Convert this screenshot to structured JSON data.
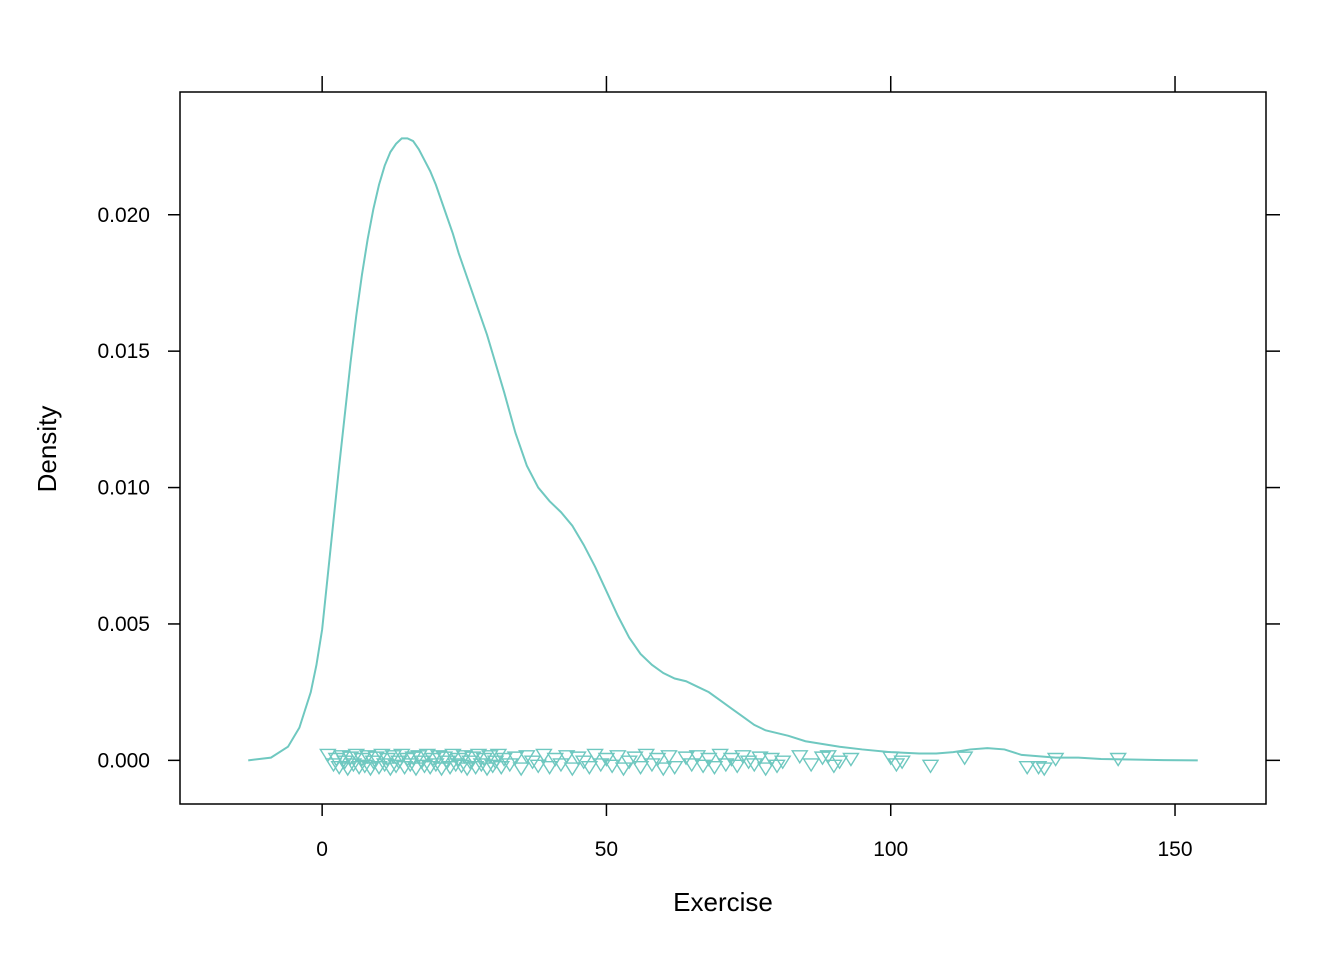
{
  "chart_data": {
    "type": "density",
    "xlabel": "Exercise",
    "ylabel": "Density",
    "xlim": [
      -25,
      166
    ],
    "ylim": [
      -0.0016,
      0.0245
    ],
    "x_ticks": [
      0,
      50,
      100,
      150
    ],
    "y_ticks": [
      0.0,
      0.005,
      0.01,
      0.015,
      0.02
    ],
    "x_tick_labels": [
      "0",
      "50",
      "100",
      "150"
    ],
    "y_tick_labels": [
      "0.000",
      "0.005",
      "0.010",
      "0.015",
      "0.020"
    ],
    "grid": false,
    "color": "#6FC8C0",
    "series": [
      {
        "x": [
          -13,
          -9,
          -6,
          -4,
          -2,
          -1,
          0,
          1,
          2,
          3,
          4,
          5,
          6,
          7,
          8,
          9,
          10,
          11,
          12,
          13,
          14,
          15,
          16,
          17,
          18,
          19,
          20,
          21,
          22,
          23,
          24,
          25,
          26,
          27,
          28,
          29,
          30,
          32,
          34,
          36,
          38,
          40,
          42,
          44,
          46,
          48,
          50,
          52,
          54,
          56,
          58,
          60,
          62,
          64,
          66,
          68,
          70,
          72,
          74,
          76,
          78,
          80,
          82,
          85,
          88,
          91,
          95,
          100,
          105,
          108,
          111,
          114,
          117,
          120,
          123,
          126,
          129,
          133,
          137,
          142,
          148,
          154
        ],
        "y": [
          0.0,
          0.0001,
          0.0005,
          0.0012,
          0.0025,
          0.0035,
          0.0048,
          0.0068,
          0.0088,
          0.0108,
          0.0127,
          0.0146,
          0.0163,
          0.0178,
          0.0191,
          0.0202,
          0.0211,
          0.0218,
          0.0223,
          0.0226,
          0.0228,
          0.0228,
          0.0227,
          0.0224,
          0.022,
          0.0216,
          0.0211,
          0.0205,
          0.0199,
          0.0193,
          0.0186,
          0.018,
          0.0174,
          0.0168,
          0.0162,
          0.0156,
          0.0149,
          0.0135,
          0.012,
          0.0108,
          0.01,
          0.0095,
          0.0091,
          0.0086,
          0.0079,
          0.0071,
          0.0062,
          0.0053,
          0.0045,
          0.0039,
          0.0035,
          0.0032,
          0.003,
          0.0029,
          0.0027,
          0.0025,
          0.0022,
          0.0019,
          0.0016,
          0.0013,
          0.0011,
          0.001,
          0.0009,
          0.0007,
          0.0006,
          0.0005,
          0.0004,
          0.0003,
          0.00025,
          0.00025,
          0.0003,
          0.0004,
          0.00045,
          0.0004,
          0.0002,
          0.00015,
          0.0001,
          0.0001,
          5e-05,
          3e-05,
          1e-05,
          0.0
        ]
      }
    ],
    "rug_points": {
      "x": [
        1,
        2,
        2.5,
        3,
        3.5,
        4,
        4.5,
        5,
        5.5,
        6,
        6.5,
        7,
        7.5,
        8,
        8.5,
        9,
        9.5,
        10,
        10.5,
        11,
        11.5,
        12,
        12.5,
        13,
        13.5,
        14,
        14.5,
        15,
        15.5,
        16,
        16.5,
        17,
        17.5,
        18,
        18.5,
        19,
        19.5,
        20,
        20.5,
        21,
        21.5,
        22,
        22.5,
        23,
        23.5,
        24,
        24.5,
        25,
        25.5,
        26,
        26.5,
        27,
        27.5,
        28,
        28.5,
        29,
        29.5,
        30,
        30.5,
        31,
        31.5,
        32,
        33,
        34,
        35,
        36,
        37,
        38,
        39,
        40,
        41,
        42,
        43,
        44,
        45,
        46,
        47,
        48,
        49,
        50,
        51,
        52,
        53,
        54,
        55,
        56,
        57,
        58,
        59,
        60,
        61,
        62,
        64,
        65,
        66,
        67,
        68,
        69,
        70,
        71,
        72,
        73,
        74,
        75,
        76,
        77,
        78,
        79,
        80,
        81,
        84,
        86,
        88,
        89,
        90,
        91,
        93,
        100,
        101,
        102,
        107,
        113,
        124,
        126,
        127,
        129,
        140
      ],
      "jitter": [
        0.00025,
        -0.0001,
        0.0001,
        -0.0002,
        0.0002,
        0.0,
        -0.00025,
        0.00015,
        -0.0001,
        0.00025,
        -0.0002,
        0.0001,
        -0.00015,
        0.0002,
        -0.00025,
        0.0,
        0.00015,
        -0.0002,
        0.00025,
        -0.0001,
        0.0001,
        -0.00025,
        0.0002,
        -0.00015,
        0.0,
        0.00025,
        -0.0002,
        0.0001,
        -0.0001,
        0.00015,
        -0.00025,
        0.0002,
        0.0,
        -0.00015,
        0.00025,
        -0.0002,
        0.0001,
        -0.0001,
        0.0002,
        -0.00025,
        0.00015,
        0.0,
        -0.0002,
        0.00025,
        -0.0001,
        0.0001,
        -0.00015,
        0.0002,
        -0.00025,
        0.0,
        0.00015,
        -0.0002,
        0.00025,
        -0.0001,
        0.0001,
        -0.00025,
        0.0002,
        -0.00015,
        0.0,
        0.00025,
        -0.0002,
        0.0001,
        -0.0001,
        0.00015,
        -0.00025,
        0.0002,
        0.0,
        -0.00015,
        0.00025,
        -0.0002,
        0.0001,
        -0.0001,
        0.0002,
        -0.00025,
        0.00015,
        0.0,
        -0.0002,
        0.00025,
        -0.0001,
        0.0001,
        -0.00015,
        0.0002,
        -0.00025,
        0.0,
        0.00015,
        -0.0002,
        0.00025,
        -0.0001,
        0.0001,
        -0.00025,
        0.0002,
        -0.0002,
        0.00015,
        -0.0001,
        0.0002,
        -0.00015,
        0.0001,
        -0.0002,
        0.00025,
        -0.0001,
        0.0001,
        -0.00015,
        0.0002,
        0.0,
        -0.0001,
        0.00015,
        -0.00025,
        0.0001,
        -0.00015,
        0.0,
        0.0002,
        -0.0001,
        0.00015,
        0.0002,
        -0.00015,
        0.0,
        0.0001,
        0.00015,
        -0.0001,
        0.0,
        -0.00015,
        0.00015,
        -0.0002,
        -0.0002,
        -0.00025,
        0.0001,
        0.0001
      ]
    }
  }
}
